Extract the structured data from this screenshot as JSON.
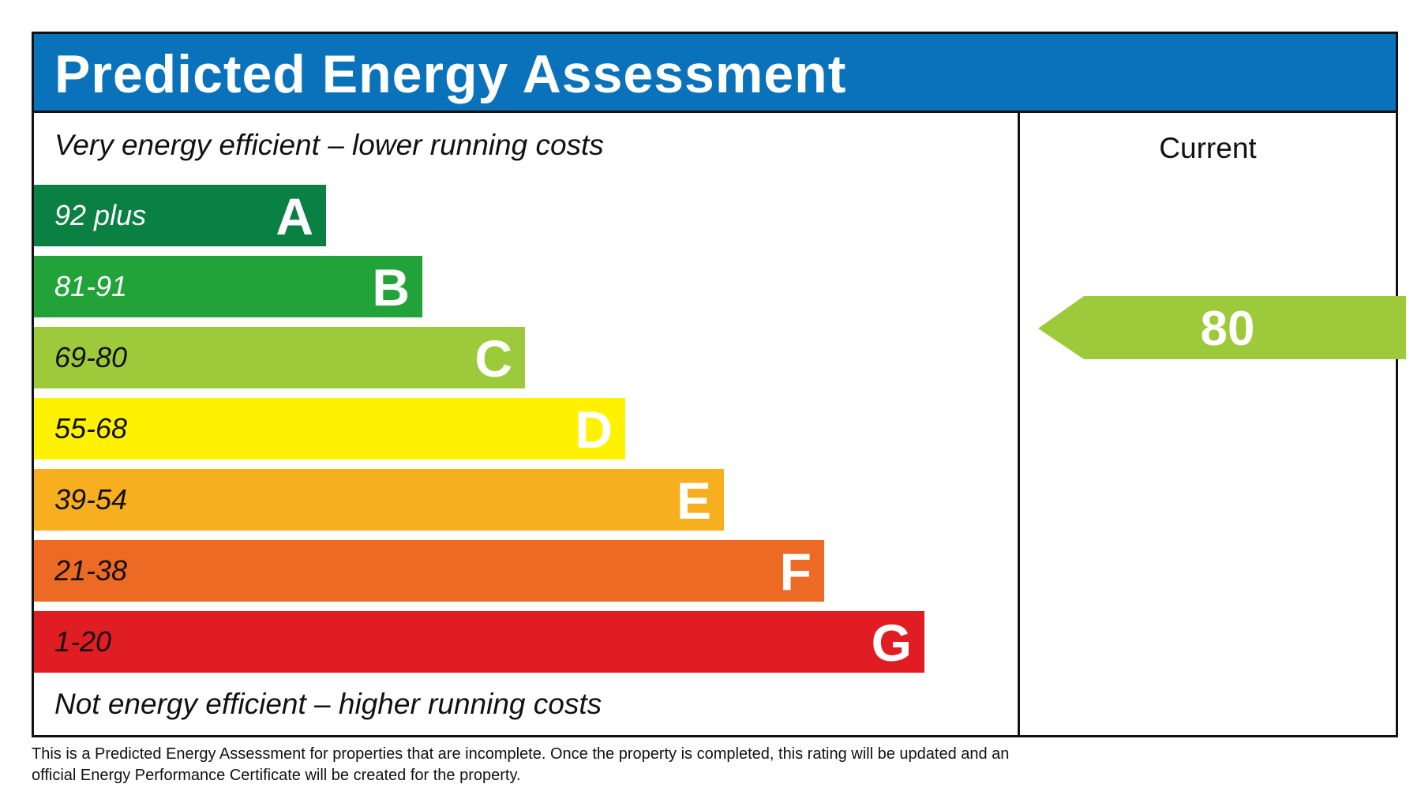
{
  "chart_data": {
    "type": "bar",
    "title": "Predicted Energy Assessment",
    "top_caption": "Very energy efficient – lower running costs",
    "bottom_caption": "Not energy efficient – higher running costs",
    "column_label": "Current",
    "bands": [
      {
        "letter": "A",
        "range": "92 plus",
        "color": "#0a8043",
        "text_color": "#ffffff"
      },
      {
        "letter": "B",
        "range": "81-91",
        "color": "#22a33a",
        "text_color": "#ffffff"
      },
      {
        "letter": "C",
        "range": "69-80",
        "color": "#9dca3b",
        "text_color": "#111111"
      },
      {
        "letter": "D",
        "range": "55-68",
        "color": "#fff200",
        "text_color": "#111111"
      },
      {
        "letter": "E",
        "range": "39-54",
        "color": "#f7ae1f",
        "text_color": "#111111"
      },
      {
        "letter": "F",
        "range": "21-38",
        "color": "#ec6a24",
        "text_color": "#111111"
      },
      {
        "letter": "G",
        "range": "1-20",
        "color": "#e11d24",
        "text_color": "#111111"
      }
    ],
    "current": {
      "value": 80,
      "band": "C",
      "color": "#9dca3b"
    }
  },
  "footer": {
    "line1": "This is a Predicted Energy Assessment for properties that are incomplete. Once the property is completed, this rating will be updated and an",
    "line2": "official Energy Performance Certificate will be created for the property."
  },
  "header_color": "#0a72bb"
}
